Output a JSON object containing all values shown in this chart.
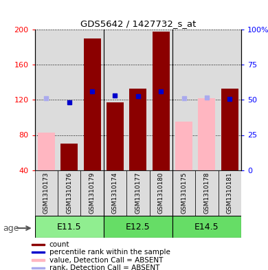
{
  "title": "GDS5642 / 1427732_s_at",
  "samples": [
    "GSM1310173",
    "GSM1310176",
    "GSM1310179",
    "GSM1310174",
    "GSM1310177",
    "GSM1310180",
    "GSM1310175",
    "GSM1310178",
    "GSM1310181"
  ],
  "count_values": [
    null,
    70,
    190,
    117,
    133,
    198,
    null,
    null,
    133
  ],
  "count_absent": [
    83,
    null,
    null,
    null,
    null,
    null,
    95,
    122,
    null
  ],
  "rank_values": [
    null,
    117,
    130,
    125,
    124,
    130,
    null,
    null,
    121
  ],
  "rank_absent": [
    122,
    null,
    null,
    null,
    null,
    null,
    122,
    123,
    null
  ],
  "ylim": [
    40,
    200
  ],
  "yticks_left": [
    40,
    80,
    120,
    160,
    200
  ],
  "ytick_labels_right": [
    "0",
    "25",
    "50",
    "75",
    "100%"
  ],
  "bar_color_present": "#8B0000",
  "bar_color_absent": "#FFB6C1",
  "rank_color_present": "#0000CC",
  "rank_color_absent": "#AAAAEE",
  "age_group_labels": [
    "E11.5",
    "E12.5",
    "E14.5"
  ],
  "age_group_starts": [
    0,
    3,
    6
  ],
  "age_group_ends": [
    3,
    6,
    9
  ],
  "age_group_colors": [
    "#90EE90",
    "#66DD66",
    "#66DD66"
  ],
  "bar_width": 0.75,
  "legend_items": [
    {
      "label": "count",
      "color": "#8B0000"
    },
    {
      "label": "percentile rank within the sample",
      "color": "#0000CC"
    },
    {
      "label": "value, Detection Call = ABSENT",
      "color": "#FFB6C1"
    },
    {
      "label": "rank, Detection Call = ABSENT",
      "color": "#AAAAEE"
    }
  ]
}
